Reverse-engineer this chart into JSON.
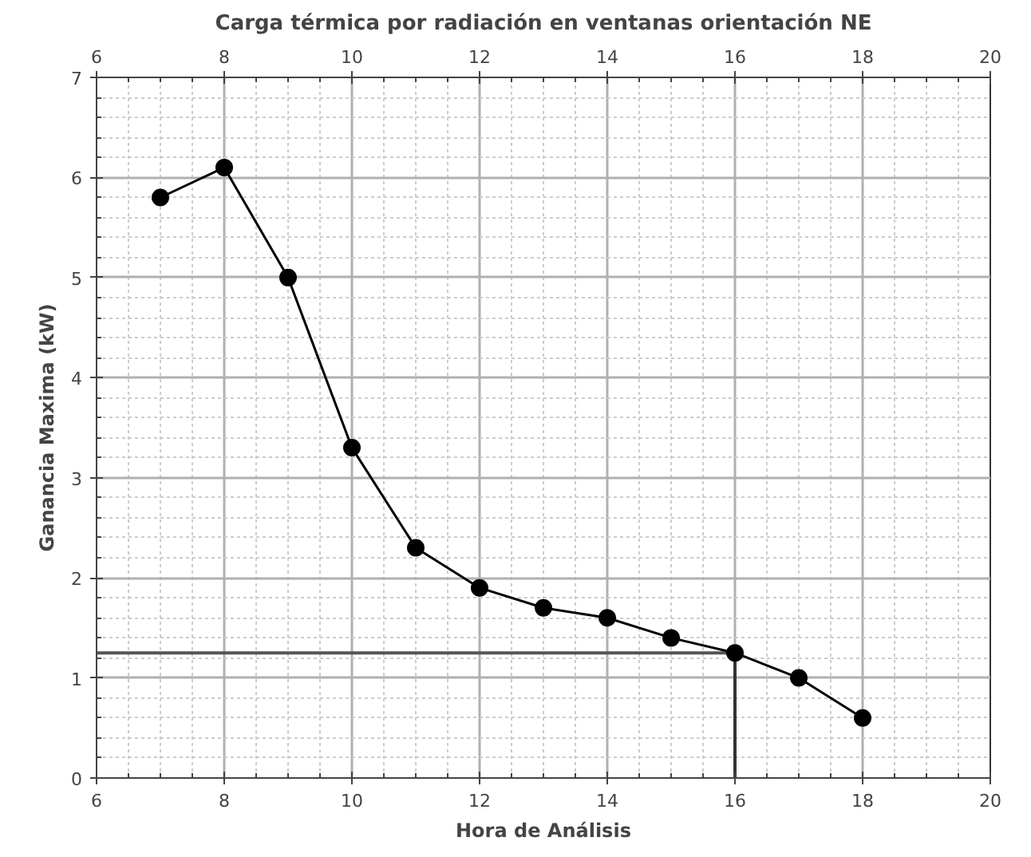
{
  "chart_data": {
    "type": "line",
    "title": "Carga térmica por radiación en ventanas orientación NE",
    "xlabel": "Hora de Análisis",
    "ylabel": "Ganancia Maxima (kW)",
    "x": [
      7,
      8,
      9,
      10,
      11,
      12,
      13,
      14,
      15,
      16,
      17,
      18
    ],
    "series": [
      {
        "color": "#000000",
        "values": [
          5.8,
          6.1,
          5.0,
          3.3,
          2.3,
          1.9,
          1.7,
          1.6,
          1.4,
          1.25,
          1.0,
          0.6
        ]
      }
    ],
    "xlim": [
      6,
      20
    ],
    "xticks": [
      6,
      8,
      10,
      12,
      14,
      16,
      18,
      20
    ],
    "x2lim": [
      6,
      20
    ],
    "x2ticks": [
      6,
      8,
      10,
      12,
      14,
      16,
      18,
      20
    ],
    "ylim": [
      0,
      7
    ],
    "yticks": [
      0,
      1,
      2,
      3,
      4,
      5,
      6,
      7
    ],
    "ref_lines": [
      {
        "axis": "y",
        "value": 1.25,
        "color": "#555555"
      },
      {
        "axis": "x",
        "value": 16,
        "color": "#333333"
      }
    ],
    "grid": true,
    "marker": "circle",
    "line_style": "solid"
  }
}
